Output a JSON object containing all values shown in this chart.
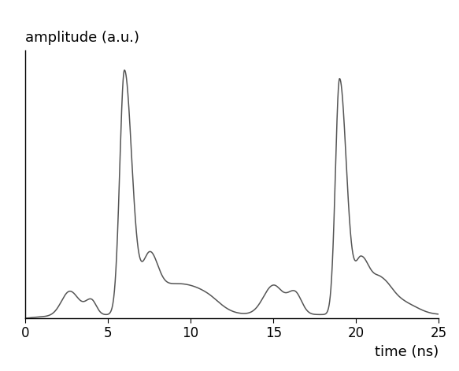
{
  "title": "",
  "xlabel": "time (ns)",
  "ylabel": "amplitude (a.u.)",
  "xlim": [
    0,
    25
  ],
  "ylim": [
    0,
    1.08
  ],
  "xticks": [
    0,
    5,
    10,
    15,
    20,
    25
  ],
  "line_color": "#555555",
  "line_width": 1.1,
  "background_color": "#ffffff",
  "figsize": [
    5.83,
    4.71
  ],
  "dpi": 100
}
